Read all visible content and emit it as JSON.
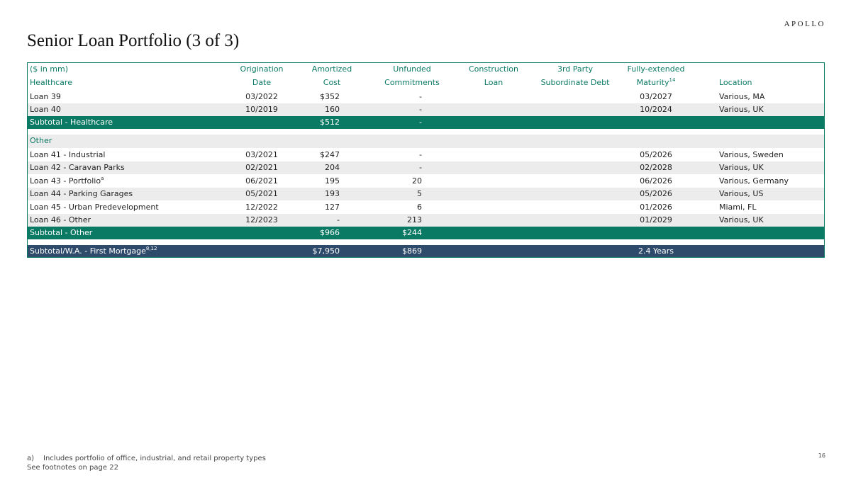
{
  "logo": "APOLLO",
  "title": "Senior Loan Portfolio (3 of 3)",
  "table": {
    "header": {
      "loan": {
        "top": "($ in mm)"
      },
      "origination": {
        "top": "Origination",
        "bottom": "Date"
      },
      "cost": {
        "top": "Amortized",
        "bottom": "Cost"
      },
      "unfunded": {
        "top": "Unfunded",
        "bottom": "Commitments"
      },
      "construction": {
        "top": "Construction",
        "bottom": "Loan"
      },
      "third_party": {
        "top": "3rd Party",
        "bottom": "Subordinate Debt"
      },
      "maturity": {
        "top": "Fully-extended",
        "bottom": "Maturity",
        "sup": "14"
      },
      "location": {
        "bottom": "Location"
      }
    },
    "sections": [
      {
        "name": "Healthcare",
        "rows": [
          {
            "loan": "Loan 39",
            "origination": "03/2022",
            "cost": "$352",
            "unfunded": "-",
            "maturity": "03/2027",
            "location": "Various, MA"
          },
          {
            "loan": "Loan 40",
            "origination": "10/2019",
            "cost": "160",
            "unfunded": "-",
            "maturity": "10/2024",
            "location": "Various, UK"
          }
        ],
        "subtotal": {
          "loan": "Subtotal - Healthcare",
          "cost": "$512",
          "unfunded": "-"
        }
      },
      {
        "name": "Other",
        "rows": [
          {
            "loan": "Loan 41 - Industrial",
            "origination": "03/2021",
            "cost": "$247",
            "unfunded": "-",
            "maturity": "05/2026",
            "location": "Various, Sweden"
          },
          {
            "loan": "Loan 42 - Caravan Parks",
            "origination": "02/2021",
            "cost": "204",
            "unfunded": "-",
            "maturity": "02/2028",
            "location": "Various, UK"
          },
          {
            "loan": "Loan 43 - Portfolio",
            "loan_sup": "a",
            "origination": "06/2021",
            "cost": "195",
            "unfunded": "20",
            "maturity": "06/2026",
            "location": "Various, Germany"
          },
          {
            "loan": "Loan 44 - Parking Garages",
            "origination": "05/2021",
            "cost": "193",
            "unfunded": "5",
            "maturity": "05/2026",
            "location": "Various, US"
          },
          {
            "loan": "Loan 45 - Urban Predevelopment",
            "origination": "12/2022",
            "cost": "127",
            "unfunded": "6",
            "maturity": "01/2026",
            "location": "Miami, FL"
          },
          {
            "loan": "Loan 46 - Other",
            "origination": "12/2023",
            "cost": "-",
            "unfunded": "213",
            "maturity": "01/2029",
            "location": "Various, UK"
          }
        ],
        "subtotal": {
          "loan": "Subtotal - Other",
          "cost": "$966",
          "unfunded": "$244"
        }
      }
    ],
    "total": {
      "loan": "Subtotal/W.A. - First Mortgage",
      "loan_sup": "8,12",
      "cost": "$7,950",
      "unfunded": "$869",
      "maturity": "2.4 Years"
    }
  },
  "footnotes": {
    "marker": "a)",
    "text": "Includes portfolio of office, industrial, and retail property types",
    "see": "See footnotes on page 22"
  },
  "page_number": "16"
}
